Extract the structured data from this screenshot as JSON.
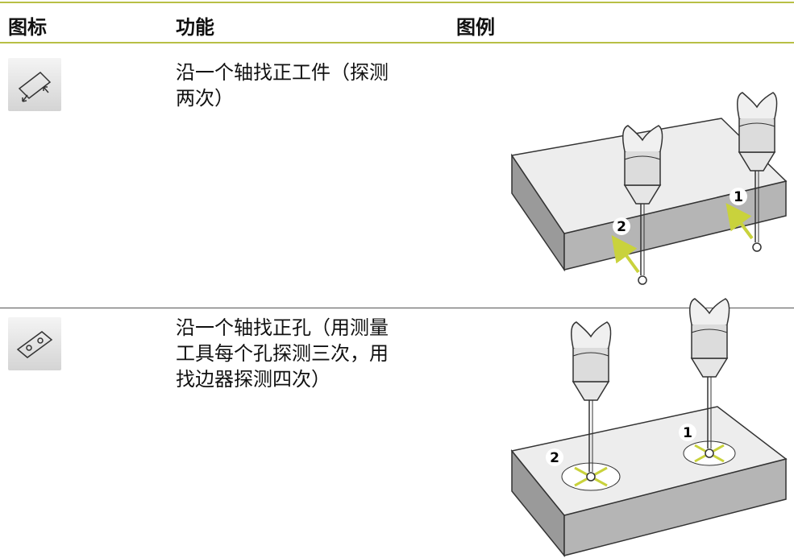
{
  "header": {
    "icon": "图标",
    "function": "功能",
    "illustration": "图例"
  },
  "rows": [
    {
      "function": [
        "沿一个轴找正工件（探测",
        "两次）"
      ],
      "labels": [
        "1",
        "2"
      ]
    },
    {
      "function": [
        "沿一个轴找正孔（用测量",
        "工具每个孔探测三次，用",
        "找边器探测四次）"
      ],
      "labels": [
        "1",
        "2"
      ]
    }
  ]
}
